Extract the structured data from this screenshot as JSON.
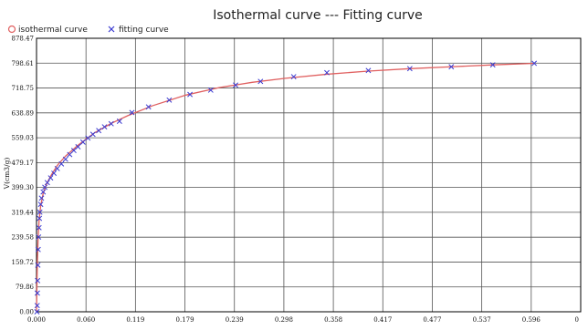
{
  "chart_data": {
    "type": "scatter",
    "title": "Isothermal curve --- Fitting curve",
    "xlabel": "",
    "ylabel": "V(cm3/g)",
    "xlim": [
      0.0,
      0.656
    ],
    "ylim": [
      0.0,
      878.47
    ],
    "x_ticks": [
      "0.000",
      "0.060",
      "0.119",
      "0.179",
      "0.239",
      "0.298",
      "0.358",
      "0.417",
      "0.477",
      "0.537",
      "0.596",
      "0"
    ],
    "y_ticks": [
      "0.00",
      "79.86",
      "159.72",
      "239.58",
      "319.44",
      "399.30",
      "479.17",
      "559.03",
      "638.89",
      "718.75",
      "798.61",
      "878.47"
    ],
    "grid": true,
    "legend_position": "top-left",
    "series": [
      {
        "name": "isothermal curve",
        "type": "line",
        "color": "#e06060",
        "marker": "circle",
        "x": [
          0.0,
          0.0005,
          0.001,
          0.002,
          0.003,
          0.005,
          0.008,
          0.012,
          0.018,
          0.025,
          0.035,
          0.05,
          0.07,
          0.09,
          0.11,
          0.14,
          0.18,
          0.22,
          0.26,
          0.3,
          0.35,
          0.4,
          0.45,
          0.5,
          0.55,
          0.6
        ],
        "y": [
          0.0,
          80.0,
          160.0,
          240.0,
          290.0,
          340.0,
          380.0,
          410.0,
          440.0,
          470.0,
          500.0,
          535.0,
          575.0,
          605.0,
          630.0,
          662.0,
          696.0,
          720.0,
          737.0,
          750.0,
          763.0,
          773.0,
          781.0,
          787.0,
          793.0,
          798.0
        ]
      },
      {
        "name": "fitting curve",
        "type": "scatter",
        "color": "#3a3ad0",
        "marker": "x",
        "x": [
          0.0005,
          0.0008,
          0.001,
          0.0013,
          0.0016,
          0.002,
          0.0025,
          0.003,
          0.0035,
          0.004,
          0.005,
          0.006,
          0.008,
          0.01,
          0.013,
          0.017,
          0.021,
          0.025,
          0.03,
          0.035,
          0.04,
          0.045,
          0.05,
          0.056,
          0.062,
          0.068,
          0.075,
          0.082,
          0.09,
          0.1,
          0.115,
          0.135,
          0.16,
          0.185,
          0.21,
          0.24,
          0.27,
          0.31,
          0.35,
          0.4,
          0.45,
          0.5,
          0.55,
          0.6
        ],
        "y": [
          0.0,
          20.0,
          60.0,
          100.0,
          150.0,
          200.0,
          240.0,
          270.0,
          300.0,
          320.0,
          345.0,
          365.0,
          385.0,
          400.0,
          415.0,
          430.0,
          445.0,
          460.0,
          475.0,
          490.0,
          505.0,
          518.0,
          530.0,
          545.0,
          558.0,
          570.0,
          582.0,
          594.0,
          604.0,
          612.0,
          640.0,
          658.0,
          680.0,
          698.0,
          712.0,
          728.0,
          740.0,
          755.0,
          768.0,
          775.0,
          781.0,
          787.0,
          793.0,
          798.0
        ]
      }
    ]
  }
}
